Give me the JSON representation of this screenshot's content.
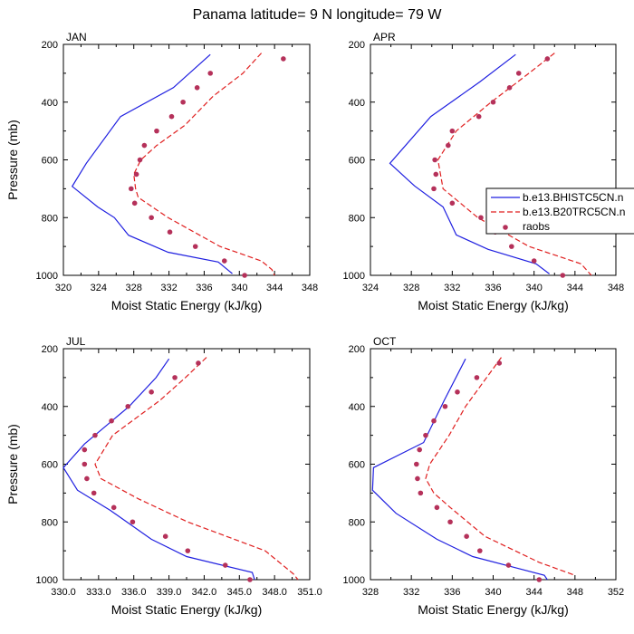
{
  "title": "Panama  latitude= 9 N longitude= 79 W",
  "colors": {
    "blue": "#1f1fe0",
    "red": "#e01f1f",
    "dots": "#b5315a"
  },
  "legend": {
    "items": [
      {
        "label": "b.e13.BHISTC5CN.n",
        "style": "solid-blue"
      },
      {
        "label": "b.e13.B20TRC5CN.n",
        "style": "dashed-red"
      },
      {
        "label": "raobs",
        "style": "dots"
      }
    ]
  },
  "chart_data": [
    {
      "type": "line",
      "panel_label": "JAN",
      "xlabel": "Moist Static Energy (kJ/kg)",
      "ylabel": "Pressure (mb)",
      "xlim": [
        320,
        348
      ],
      "xticks": [
        320,
        324,
        328,
        332,
        336,
        340,
        344,
        348
      ],
      "xtick_labels": [
        "320",
        "324",
        "328",
        "332",
        "336",
        "340",
        "344",
        "348"
      ],
      "ylim": [
        200,
        1000
      ],
      "yticks": [
        200,
        400,
        600,
        800,
        1000
      ],
      "ytick_labels": [
        "200",
        "400",
        "600",
        "800",
        "1000"
      ],
      "y_inverted": true,
      "series": [
        {
          "name": "b.e13.BHISTC5CN.n",
          "style": "solid-blue",
          "x": [
            336.7,
            332.5,
            326.5,
            322.6,
            321.0,
            323.9,
            325.8,
            327.4,
            331.9,
            337.6,
            339.2
          ],
          "y": [
            235,
            350,
            450,
            612,
            692,
            763,
            800,
            861,
            920,
            954,
            994
          ]
        },
        {
          "name": "b.e13.B20TRC5CN.n",
          "style": "dashed-red",
          "x": [
            342.5,
            340.4,
            337.0,
            333.8,
            330.6,
            328.8,
            328.0,
            328.2,
            328.5,
            331.9,
            337.8,
            342.5,
            343.7,
            344.0
          ],
          "y": [
            230,
            300,
            380,
            480,
            550,
            600,
            650,
            700,
            730,
            800,
            900,
            950,
            980,
            1000
          ]
        },
        {
          "name": "raobs",
          "style": "dots",
          "x": [
            345.0,
            336.7,
            335.2,
            333.6,
            332.3,
            330.6,
            329.2,
            328.7,
            328.3,
            327.7,
            328.1,
            330.0,
            332.1,
            335.0,
            338.3,
            340.6
          ],
          "y": [
            250,
            300,
            350,
            400,
            450,
            500,
            550,
            600,
            650,
            700,
            750,
            800,
            850,
            900,
            950,
            1000
          ]
        }
      ]
    },
    {
      "type": "line",
      "panel_label": "APR",
      "xlabel": "Moist Static Energy (kJ/kg)",
      "ylabel": "",
      "xlim": [
        324,
        348
      ],
      "xticks": [
        324,
        328,
        332,
        336,
        340,
        344,
        348
      ],
      "xtick_labels": [
        "324",
        "328",
        "332",
        "336",
        "340",
        "344",
        "348"
      ],
      "ylim": [
        200,
        1000
      ],
      "yticks": [
        200,
        400,
        600,
        800,
        1000
      ],
      "ytick_labels": [
        "200",
        "400",
        "600",
        "800",
        "1000"
      ],
      "y_inverted": true,
      "series": [
        {
          "name": "b.e13.BHISTC5CN.n",
          "style": "solid-blue",
          "x": [
            338.2,
            334.7,
            329.9,
            325.9,
            328.3,
            331.1,
            332.4,
            335.5,
            340.2,
            341.5
          ],
          "y": [
            235,
            330,
            450,
            612,
            690,
            763,
            860,
            910,
            960,
            995
          ]
        },
        {
          "name": "b.e13.B20TRC5CN.n",
          "style": "dashed-red",
          "x": [
            342.0,
            339.5,
            335.8,
            332.4,
            330.6,
            331.1,
            334.5,
            339.5,
            344.6,
            345.6
          ],
          "y": [
            230,
            300,
            400,
            500,
            600,
            700,
            800,
            900,
            960,
            1000
          ]
        },
        {
          "name": "raobs",
          "style": "dots",
          "x": [
            341.3,
            338.5,
            337.6,
            336.0,
            334.6,
            332.0,
            331.6,
            330.3,
            330.4,
            330.2,
            332.0,
            334.8,
            336.2,
            337.8,
            340.0,
            342.8
          ],
          "y": [
            250,
            300,
            350,
            400,
            450,
            500,
            550,
            600,
            650,
            700,
            750,
            800,
            850,
            900,
            950,
            1000
          ]
        }
      ]
    },
    {
      "type": "line",
      "panel_label": "JUL",
      "xlabel": "Moist Static Energy (kJ/kg)",
      "ylabel": "Pressure (mb)",
      "xlim": [
        330,
        351
      ],
      "xticks": [
        330,
        333,
        336,
        339,
        342,
        345,
        348,
        351
      ],
      "xtick_labels": [
        "330.0",
        "333.0",
        "336.0",
        "339.0",
        "342.0",
        "345.0",
        "348.0",
        "351.0"
      ],
      "ylim": [
        200,
        1000
      ],
      "yticks": [
        200,
        400,
        600,
        800,
        1000
      ],
      "ytick_labels": [
        "200",
        "400",
        "600",
        "800",
        "1000"
      ],
      "y_inverted": true,
      "series": [
        {
          "name": "b.e13.BHISTC5CN.n",
          "style": "solid-blue",
          "x": [
            339.0,
            337.9,
            335.6,
            331.8,
            330.0,
            331.2,
            334.0,
            337.5,
            340.5,
            346.1,
            346.3
          ],
          "y": [
            235,
            300,
            400,
            530,
            612,
            690,
            760,
            860,
            920,
            975,
            1000
          ]
        },
        {
          "name": "b.e13.B20TRC5CN.n",
          "style": "dashed-red",
          "x": [
            342.2,
            340.4,
            338.2,
            334.2,
            332.7,
            333.2,
            336.4,
            340.6,
            347.2,
            349.6,
            350.0
          ],
          "y": [
            230,
            300,
            380,
            500,
            600,
            650,
            720,
            800,
            900,
            980,
            1000
          ]
        },
        {
          "name": "raobs",
          "style": "dots",
          "x": [
            341.5,
            339.5,
            337.5,
            335.5,
            334.1,
            332.7,
            331.8,
            331.8,
            332.0,
            332.6,
            334.3,
            335.9,
            338.7,
            340.6,
            343.8,
            345.9
          ],
          "y": [
            250,
            300,
            350,
            400,
            450,
            500,
            550,
            600,
            650,
            700,
            750,
            800,
            850,
            900,
            950,
            1000
          ]
        }
      ]
    },
    {
      "type": "line",
      "panel_label": "OCT",
      "xlabel": "Moist Static Energy (kJ/kg)",
      "ylabel": "",
      "xlim": [
        328,
        352
      ],
      "xticks": [
        328,
        332,
        336,
        340,
        344,
        348,
        352
      ],
      "xtick_labels": [
        "328",
        "332",
        "336",
        "340",
        "344",
        "348",
        "352"
      ],
      "ylim": [
        200,
        1000
      ],
      "yticks": [
        200,
        400,
        600,
        800,
        1000
      ],
      "ytick_labels": [
        "200",
        "400",
        "600",
        "800",
        "1000"
      ],
      "y_inverted": true,
      "series": [
        {
          "name": "b.e13.BHISTC5CN.n",
          "style": "solid-blue",
          "x": [
            337.3,
            335.2,
            333.2,
            328.3,
            328.2,
            330.5,
            334.5,
            338.0,
            341.8,
            345.0,
            345.3
          ],
          "y": [
            235,
            380,
            525,
            612,
            690,
            770,
            860,
            920,
            955,
            985,
            1000
          ]
        },
        {
          "name": "b.e13.B20TRC5CN.n",
          "style": "dashed-red",
          "x": [
            340.8,
            337.3,
            335.7,
            333.8,
            333.4,
            334.2,
            335.8,
            339.2,
            344.5,
            348.0
          ],
          "y": [
            230,
            400,
            500,
            600,
            650,
            700,
            750,
            850,
            940,
            985
          ]
        },
        {
          "name": "raobs",
          "style": "dots",
          "x": [
            340.6,
            338.4,
            336.5,
            335.3,
            334.2,
            333.4,
            332.8,
            332.5,
            332.6,
            332.9,
            334.5,
            335.8,
            337.4,
            338.7,
            341.5,
            344.5
          ],
          "y": [
            250,
            300,
            350,
            400,
            450,
            500,
            550,
            600,
            650,
            700,
            750,
            800,
            850,
            900,
            950,
            1000
          ]
        }
      ]
    }
  ]
}
